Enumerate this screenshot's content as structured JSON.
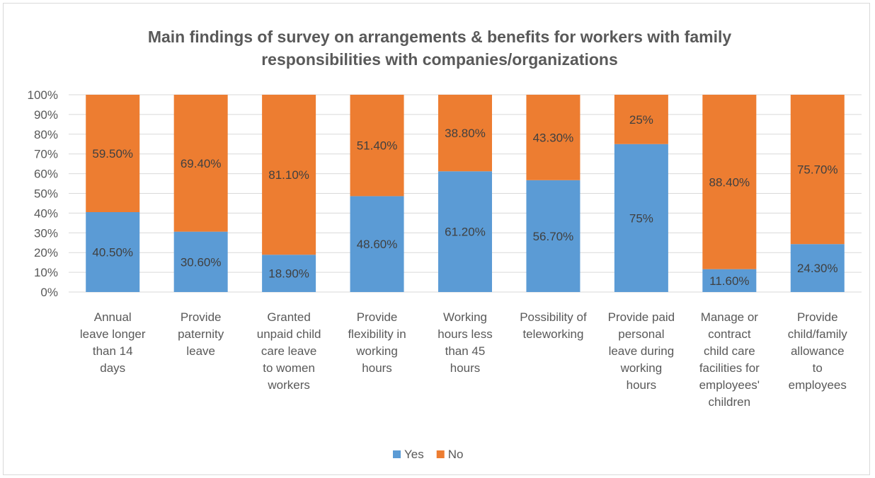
{
  "chart_data": {
    "type": "bar",
    "stacked": true,
    "title": "Main findings of survey on arrangements & benefits for workers with family responsibilities with companies/organizations",
    "title_lines": [
      "Main findings of survey on arrangements & benefits for workers with family",
      "responsibilities with companies/organizations"
    ],
    "categories": [
      "Annual leave longer than 14 days",
      "Provide paternity leave",
      "Granted unpaid child care leave to women workers",
      "Provide flexibility in working hours",
      "Working hours less than 45 hours",
      "Possibility of teleworking",
      "Provide paid personal leave during working hours",
      "Manage or contract child care facilities for employees' children",
      "Provide child/family allowance to employees"
    ],
    "category_lines": [
      [
        "Annual",
        "leave longer",
        "than 14",
        "days"
      ],
      [
        "Provide",
        "paternity",
        "leave"
      ],
      [
        "Granted",
        "unpaid child",
        "care leave",
        "to women",
        "workers"
      ],
      [
        "Provide",
        "flexibility in",
        "working",
        "hours"
      ],
      [
        "Working",
        "hours less",
        "than 45",
        "hours"
      ],
      [
        "Possibility of",
        "teleworking"
      ],
      [
        "Provide paid",
        "personal",
        "leave during",
        "working",
        "hours"
      ],
      [
        "Manage or",
        "contract",
        "child care",
        "facilities for",
        "employees'",
        "children"
      ],
      [
        "Provide",
        "child/family",
        "allowance",
        "to",
        "employees"
      ]
    ],
    "series": [
      {
        "name": "Yes",
        "color": "#5b9bd5",
        "values": [
          40.5,
          30.6,
          18.9,
          48.6,
          61.2,
          56.7,
          75,
          11.6,
          24.3
        ],
        "labels": [
          "40.50%",
          "30.60%",
          "18.90%",
          "48.60%",
          "61.20%",
          "56.70%",
          "75%",
          "11.60%",
          "24.30%"
        ]
      },
      {
        "name": "No",
        "color": "#ed7d31",
        "values": [
          59.5,
          69.4,
          81.1,
          51.4,
          38.8,
          43.3,
          25,
          88.4,
          75.7
        ],
        "labels": [
          "59.50%",
          "69.40%",
          "81.10%",
          "51.40%",
          "38.80%",
          "43.30%",
          "25%",
          "88.40%",
          "75.70%"
        ]
      }
    ],
    "y_ticks": [
      "0%",
      "10%",
      "20%",
      "30%",
      "40%",
      "50%",
      "60%",
      "70%",
      "80%",
      "90%",
      "100%"
    ],
    "ylim": [
      0,
      100
    ],
    "grid": true,
    "gridline_color": "#d9d9d9",
    "legend": "bottom"
  }
}
